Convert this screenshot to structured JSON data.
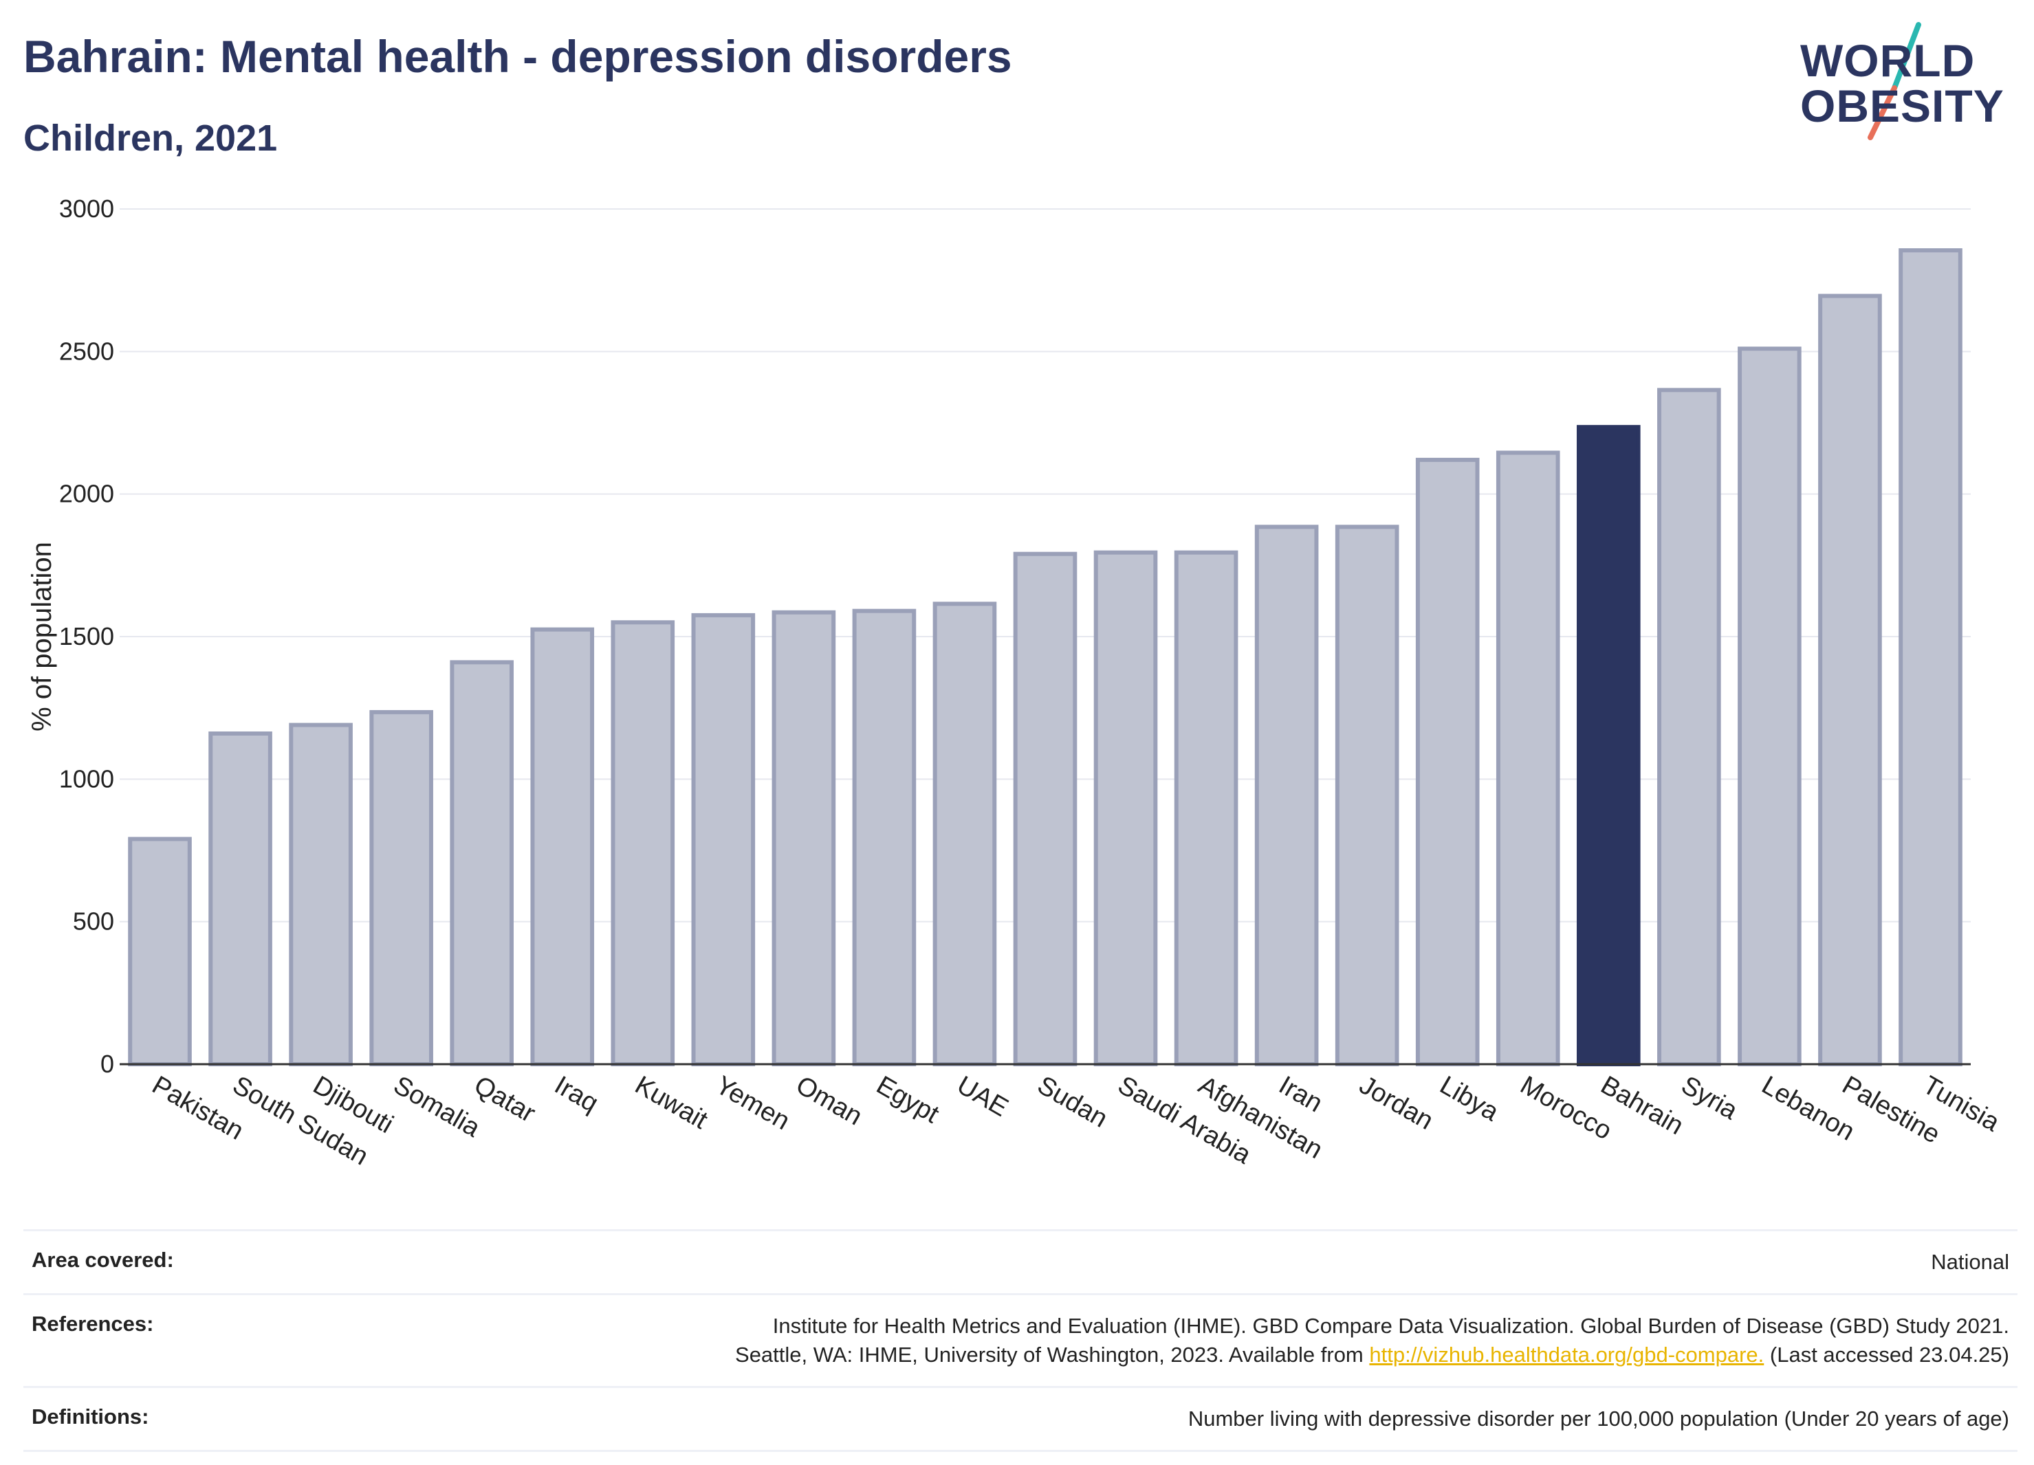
{
  "header": {
    "title": "Bahrain: Mental health - depression disorders",
    "subtitle": "Children, 2021"
  },
  "logo": {
    "line1": "WORLD",
    "line2": "OBESITY",
    "slash_colors": [
      "#2ab7b0",
      "#e8705a"
    ]
  },
  "chart_data": {
    "type": "bar",
    "ylabel": "% of population",
    "ylim": [
      0,
      3000
    ],
    "yticks": [
      0,
      500,
      1000,
      1500,
      2000,
      2500,
      3000
    ],
    "grid": true,
    "highlight": "Bahrain",
    "colors": {
      "bar": "#bfc3d1",
      "bar_border": "#9aa0b8",
      "highlight": "#2b3560"
    },
    "categories": [
      "Pakistan",
      "South Sudan",
      "Djibouti",
      "Somalia",
      "Qatar",
      "Iraq",
      "Kuwait",
      "Yemen",
      "Oman",
      "Egypt",
      "UAE",
      "Sudan",
      "Saudi Arabia",
      "Afghanistan",
      "Iran",
      "Jordan",
      "Libya",
      "Morocco",
      "Bahrain",
      "Syria",
      "Lebanon",
      "Palestine",
      "Tunisia"
    ],
    "values": [
      790,
      1160,
      1190,
      1235,
      1410,
      1525,
      1550,
      1575,
      1585,
      1590,
      1615,
      1790,
      1795,
      1795,
      1885,
      1885,
      2120,
      2145,
      2235,
      2365,
      2510,
      2695,
      2855
    ]
  },
  "footer": {
    "area_label": "Area covered:",
    "area_value": "National",
    "references_label": "References:",
    "references_line1": "Institute for Health Metrics and Evaluation (IHME). GBD Compare Data Visualization. Global Burden of Disease (GBD) Study 2021.",
    "references_line2_pre": "Seattle, WA: IHME, University of Washington, 2023. Available from",
    "references_link": "http://vizhub.healthdata.org/gbd-compare.",
    "references_line2_post": "(Last accessed 23.04.25)",
    "definitions_label": "Definitions:",
    "definitions_value": "Number living with depressive disorder per 100,000 population (Under 20 years of age)"
  }
}
